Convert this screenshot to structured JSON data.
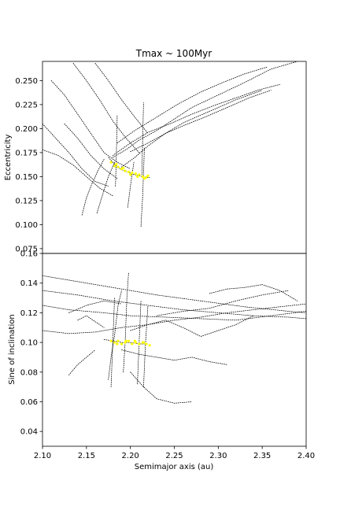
{
  "figure": {
    "title": "Tmax ~ 100Myr"
  },
  "chart_data": [
    {
      "type": "scatter",
      "panel": "top",
      "title": "Tmax ~ 100Myr",
      "xlabel": "",
      "ylabel": "Eccentricity",
      "xlim": [
        2.1,
        2.4
      ],
      "ylim": [
        0.07,
        0.27
      ],
      "yticks": [
        0.075,
        0.1,
        0.125,
        0.15,
        0.175,
        0.2,
        0.225,
        0.25
      ],
      "ytick_labels": [
        "0.075",
        "0.100",
        "0.125",
        "0.150",
        "0.175",
        "0.200",
        "0.225",
        "0.250"
      ],
      "grid": false,
      "colors": {
        "tracks": "#000000",
        "cluster": "#ffff00"
      },
      "tracks": [
        {
          "x": [
            2.175,
            2.18,
            2.188,
            2.196,
            2.205,
            2.214,
            2.222
          ],
          "y": [
            0.17,
            0.165,
            0.158,
            0.155,
            0.152,
            0.15,
            0.149
          ]
        },
        {
          "x": [
            2.18,
            2.195,
            2.21,
            2.23,
            2.25,
            2.27,
            2.3,
            2.33,
            2.36,
            2.39
          ],
          "y": [
            0.17,
            0.178,
            0.188,
            0.198,
            0.21,
            0.222,
            0.235,
            0.248,
            0.262,
            0.27
          ]
        },
        {
          "x": [
            2.18,
            2.2,
            2.22,
            2.245,
            2.27,
            2.295,
            2.32,
            2.345,
            2.37
          ],
          "y": [
            0.172,
            0.185,
            0.196,
            0.205,
            0.215,
            0.224,
            0.232,
            0.24,
            0.246
          ]
        },
        {
          "x": [
            2.2,
            2.22,
            2.24,
            2.26,
            2.285,
            2.31,
            2.335,
            2.36
          ],
          "y": [
            0.176,
            0.185,
            0.195,
            0.203,
            0.212,
            0.222,
            0.232,
            0.24
          ]
        },
        {
          "x": [
            2.185,
            2.205,
            2.23,
            2.255,
            2.28,
            2.305,
            2.33,
            2.355
          ],
          "y": [
            0.185,
            0.198,
            0.212,
            0.226,
            0.238,
            0.248,
            0.257,
            0.264
          ]
        },
        {
          "x": [
            2.11,
            2.125,
            2.14,
            2.155,
            2.17,
            2.185,
            2.2
          ],
          "y": [
            0.25,
            0.235,
            0.215,
            0.195,
            0.175,
            0.165,
            0.158
          ]
        },
        {
          "x": [
            2.1,
            2.115,
            2.13,
            2.145,
            2.16,
            2.175
          ],
          "y": [
            0.205,
            0.19,
            0.175,
            0.158,
            0.145,
            0.14
          ]
        },
        {
          "x": [
            2.1,
            2.118,
            2.135,
            2.15,
            2.165,
            2.18
          ],
          "y": [
            0.178,
            0.172,
            0.162,
            0.15,
            0.138,
            0.13
          ]
        },
        {
          "x": [
            2.135,
            2.15,
            2.165,
            2.18,
            2.195,
            2.21
          ],
          "y": [
            0.268,
            0.25,
            0.23,
            0.208,
            0.19,
            0.175
          ]
        },
        {
          "x": [
            2.16,
            2.175,
            2.19,
            2.205,
            2.22
          ],
          "y": [
            0.268,
            0.25,
            0.23,
            0.212,
            0.195
          ]
        },
        {
          "x": [
            2.125,
            2.14,
            2.155,
            2.17,
            2.185
          ],
          "y": [
            0.205,
            0.19,
            0.172,
            0.158,
            0.148
          ]
        },
        {
          "x": [
            2.145,
            2.15,
            2.156,
            2.163,
            2.17
          ],
          "y": [
            0.11,
            0.128,
            0.142,
            0.156,
            0.168
          ]
        },
        {
          "x": [
            2.162,
            2.168,
            2.175,
            2.182
          ],
          "y": [
            0.112,
            0.13,
            0.15,
            0.165
          ]
        },
        {
          "x": [
            2.197,
            2.2,
            2.204
          ],
          "y": [
            0.118,
            0.14,
            0.165
          ]
        },
        {
          "x": [
            2.212,
            2.214,
            2.216
          ],
          "y": [
            0.098,
            0.13,
            0.18
          ]
        },
        {
          "x": [
            2.183,
            2.184,
            2.185
          ],
          "y": [
            0.14,
            0.17,
            0.214
          ]
        },
        {
          "x": [
            2.213,
            2.214,
            2.215
          ],
          "y": [
            0.15,
            0.19,
            0.227
          ]
        },
        {
          "x": [
            2.19,
            2.205,
            2.22,
            2.24,
            2.26,
            2.29,
            2.32,
            2.35
          ],
          "y": [
            0.16,
            0.17,
            0.182,
            0.195,
            0.206,
            0.218,
            0.23,
            0.24
          ]
        }
      ],
      "cluster": {
        "label": "",
        "x": [
          2.178,
          2.182,
          2.186,
          2.19,
          2.194,
          2.198,
          2.202,
          2.206,
          2.21,
          2.214,
          2.218,
          2.22,
          2.184,
          2.192,
          2.2,
          2.208,
          2.216
        ],
        "y": [
          0.165,
          0.161,
          0.16,
          0.158,
          0.156,
          0.155,
          0.154,
          0.153,
          0.152,
          0.15,
          0.149,
          0.151,
          0.163,
          0.159,
          0.152,
          0.15,
          0.148
        ]
      }
    },
    {
      "type": "scatter",
      "panel": "bottom",
      "title": "",
      "xlabel": "Semimajor axis (au)",
      "ylabel": "Sine of inclination",
      "xlim": [
        2.1,
        2.4
      ],
      "ylim": [
        0.03,
        0.16
      ],
      "xticks": [
        2.1,
        2.15,
        2.2,
        2.25,
        2.3,
        2.35,
        2.4
      ],
      "xtick_labels": [
        "2.10",
        "2.15",
        "2.20",
        "2.25",
        "2.30",
        "2.35",
        "2.40"
      ],
      "yticks": [
        0.04,
        0.06,
        0.08,
        0.1,
        0.12,
        0.14,
        0.16
      ],
      "ytick_labels": [
        "0.04",
        "0.06",
        "0.08",
        "0.10",
        "0.12",
        "0.14",
        "0.16"
      ],
      "grid": false,
      "colors": {
        "tracks": "#000000",
        "cluster": "#ffff00"
      },
      "tracks": [
        {
          "x": [
            2.17,
            2.18,
            2.19,
            2.2,
            2.21,
            2.22
          ],
          "y": [
            0.102,
            0.101,
            0.1,
            0.1,
            0.099,
            0.099
          ]
        },
        {
          "x": [
            2.1,
            2.13,
            2.16,
            2.19,
            2.22,
            2.25,
            2.28,
            2.31,
            2.34,
            2.37,
            2.4
          ],
          "y": [
            0.108,
            0.106,
            0.107,
            0.11,
            0.112,
            0.115,
            0.117,
            0.12,
            0.122,
            0.124,
            0.126
          ]
        },
        {
          "x": [
            2.1,
            2.14,
            2.18,
            2.22,
            2.26,
            2.3,
            2.34,
            2.38,
            2.4
          ],
          "y": [
            0.135,
            0.132,
            0.128,
            0.125,
            0.122,
            0.12,
            0.118,
            0.117,
            0.116
          ]
        },
        {
          "x": [
            2.1,
            2.13,
            2.17,
            2.2,
            2.24,
            2.28,
            2.32,
            2.36,
            2.4
          ],
          "y": [
            0.125,
            0.122,
            0.12,
            0.118,
            0.117,
            0.116,
            0.115,
            0.118,
            0.121
          ]
        },
        {
          "x": [
            2.23,
            2.26,
            2.29,
            2.32,
            2.35,
            2.38
          ],
          "y": [
            0.118,
            0.121,
            0.123,
            0.128,
            0.132,
            0.135
          ]
        },
        {
          "x": [
            2.29,
            2.31,
            2.33,
            2.35,
            2.37,
            2.39
          ],
          "y": [
            0.133,
            0.136,
            0.137,
            0.139,
            0.135,
            0.128
          ]
        },
        {
          "x": [
            2.2,
            2.22,
            2.24,
            2.26,
            2.28,
            2.3,
            2.32,
            2.34
          ],
          "y": [
            0.108,
            0.112,
            0.115,
            0.11,
            0.104,
            0.108,
            0.112,
            0.118
          ]
        },
        {
          "x": [
            2.19,
            2.21,
            2.23,
            2.25,
            2.27,
            2.29,
            2.31
          ],
          "y": [
            0.095,
            0.092,
            0.09,
            0.088,
            0.09,
            0.087,
            0.085
          ]
        },
        {
          "x": [
            2.2,
            2.215,
            2.23,
            2.25,
            2.27
          ],
          "y": [
            0.08,
            0.07,
            0.062,
            0.059,
            0.06
          ]
        },
        {
          "x": [
            2.13,
            2.15,
            2.17,
            2.19
          ],
          "y": [
            0.12,
            0.125,
            0.128,
            0.126
          ]
        },
        {
          "x": [
            2.13,
            2.14,
            2.15,
            2.16
          ],
          "y": [
            0.078,
            0.085,
            0.09,
            0.095
          ]
        },
        {
          "x": [
            2.14,
            2.15,
            2.16,
            2.17
          ],
          "y": [
            0.115,
            0.118,
            0.114,
            0.11
          ]
        },
        {
          "x": [
            2.175,
            2.178,
            2.182,
            2.186,
            2.19
          ],
          "y": [
            0.075,
            0.09,
            0.105,
            0.125,
            0.135
          ]
        },
        {
          "x": [
            2.192,
            2.194,
            2.196,
            2.198
          ],
          "y": [
            0.08,
            0.1,
            0.13,
            0.147
          ]
        },
        {
          "x": [
            2.178,
            2.18,
            2.182
          ],
          "y": [
            0.07,
            0.1,
            0.13
          ]
        },
        {
          "x": [
            2.208,
            2.21,
            2.212
          ],
          "y": [
            0.072,
            0.1,
            0.128
          ]
        },
        {
          "x": [
            2.215,
            2.217,
            2.22
          ],
          "y": [
            0.07,
            0.098,
            0.125
          ]
        },
        {
          "x": [
            2.1,
            2.14,
            2.18,
            2.23,
            2.28,
            2.33,
            2.38,
            2.4
          ],
          "y": [
            0.145,
            0.141,
            0.137,
            0.132,
            0.128,
            0.124,
            0.121,
            0.12
          ]
        }
      ],
      "cluster": {
        "label": "",
        "x": [
          2.178,
          2.182,
          2.186,
          2.19,
          2.194,
          2.198,
          2.202,
          2.206,
          2.21,
          2.214,
          2.218,
          2.222,
          2.185,
          2.195,
          2.205,
          2.215
        ],
        "y": [
          0.101,
          0.1,
          0.101,
          0.099,
          0.1,
          0.101,
          0.099,
          0.1,
          0.099,
          0.1,
          0.099,
          0.098,
          0.099,
          0.101,
          0.101,
          0.1
        ]
      }
    }
  ]
}
